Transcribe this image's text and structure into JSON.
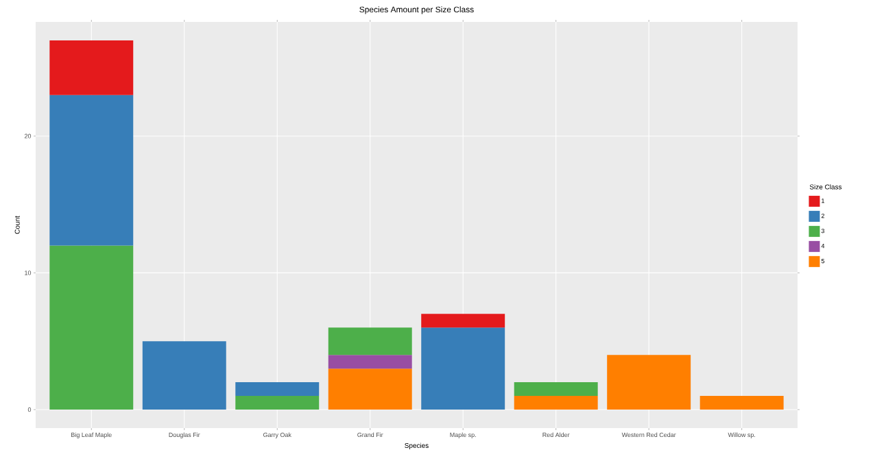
{
  "chart_data": {
    "type": "bar",
    "title": "Species Amount per Size Class",
    "xlabel": "Species",
    "ylabel": "Count",
    "legend_title": "Size Class",
    "categories": [
      "Big Leaf Maple",
      "Douglas Fir",
      "Garry Oak",
      "Grand Fir",
      "Maple sp.",
      "Red Alder",
      "Western Red Cedar",
      "Willow sp."
    ],
    "stacked": true,
    "series": [
      {
        "name": "5",
        "color": "#ff7f00",
        "values": [
          null,
          null,
          null,
          3,
          null,
          1,
          4,
          1
        ]
      },
      {
        "name": "4",
        "color": "#984ea3",
        "values": [
          null,
          null,
          null,
          1,
          null,
          null,
          null,
          null
        ]
      },
      {
        "name": "3",
        "color": "#4daf4a",
        "values": [
          12,
          null,
          1,
          2,
          null,
          1,
          null,
          null
        ]
      },
      {
        "name": "2",
        "color": "#377eb8",
        "values": [
          11,
          5,
          1,
          null,
          6,
          null,
          null,
          null
        ]
      },
      {
        "name": "1",
        "color": "#e41a1c",
        "values": [
          4,
          null,
          null,
          null,
          1,
          null,
          null,
          null
        ]
      }
    ],
    "ylim": [
      -1.35,
      28.35
    ],
    "yticks": [
      0,
      10,
      20
    ],
    "grid": true,
    "legend": "right"
  }
}
